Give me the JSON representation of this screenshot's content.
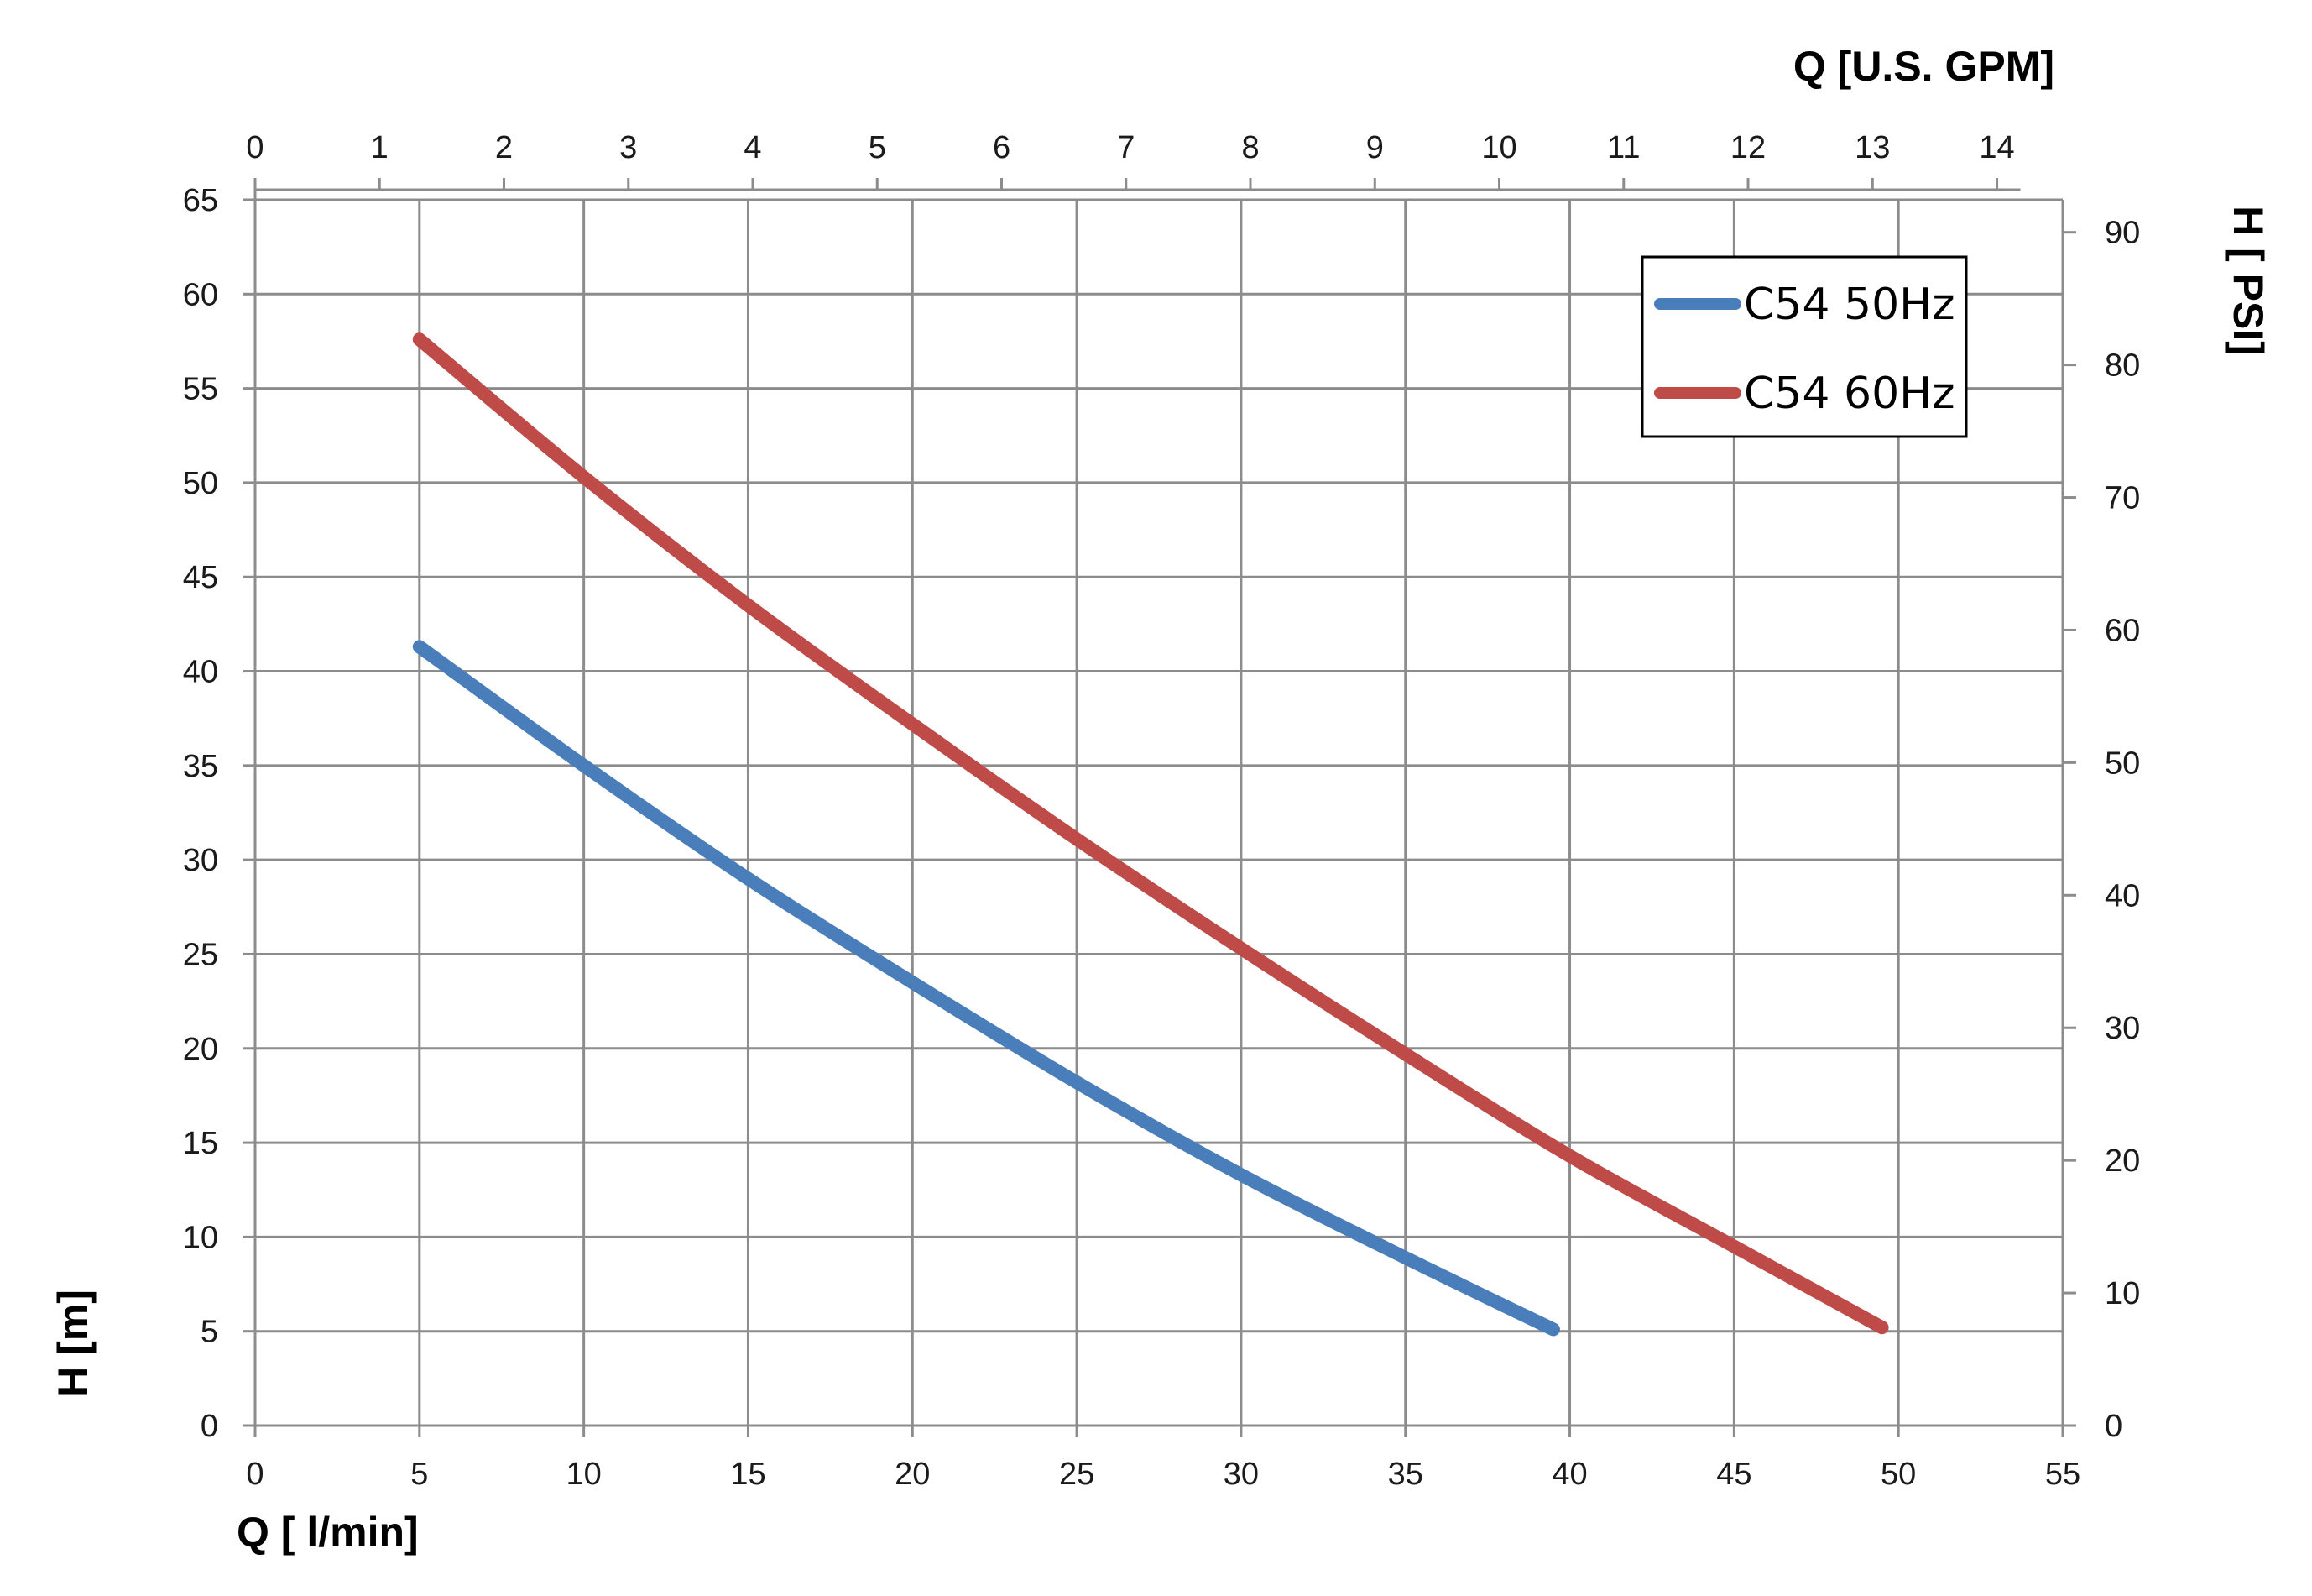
{
  "chart_data": {
    "type": "line",
    "xlabel": "Q [ l/min]",
    "ylabel": "H [m]",
    "x2label": "Q  [U.S. GPM]",
    "y2label": "H [ PSI]",
    "xlim": [
      0,
      55
    ],
    "ylim": [
      0,
      65
    ],
    "x2lim": [
      0,
      14
    ],
    "y2lim": [
      0,
      90
    ],
    "xticks": [
      0,
      5,
      10,
      15,
      20,
      25,
      30,
      35,
      40,
      45,
      50,
      55
    ],
    "yticks": [
      0,
      5,
      10,
      15,
      20,
      25,
      30,
      35,
      40,
      45,
      50,
      55,
      60,
      65
    ],
    "x2ticks": [
      0,
      1,
      2,
      3,
      4,
      5,
      6,
      7,
      8,
      9,
      10,
      11,
      12,
      13,
      14
    ],
    "y2ticks": [
      0,
      10,
      20,
      30,
      40,
      50,
      60,
      70,
      80,
      90
    ],
    "x2_per_x": 0.26417,
    "y2_per_y": 1.4223,
    "grid": true,
    "legend_position": "top-right",
    "series": [
      {
        "name": "C54 50Hz",
        "color": "#4a7ebb",
        "x": [
          5,
          10,
          15,
          20,
          25,
          30,
          35,
          39.5
        ],
        "y": [
          41.3,
          35,
          29,
          23.5,
          18.2,
          13.3,
          8.9,
          5.1
        ]
      },
      {
        "name": "C54 60Hz",
        "color": "#be4b48",
        "x": [
          5,
          10,
          15,
          20,
          25,
          30,
          35,
          40,
          45,
          49.5
        ],
        "y": [
          57.6,
          50.3,
          43.5,
          37.2,
          31.1,
          25.3,
          19.7,
          14.3,
          9.5,
          5.2
        ]
      }
    ]
  }
}
